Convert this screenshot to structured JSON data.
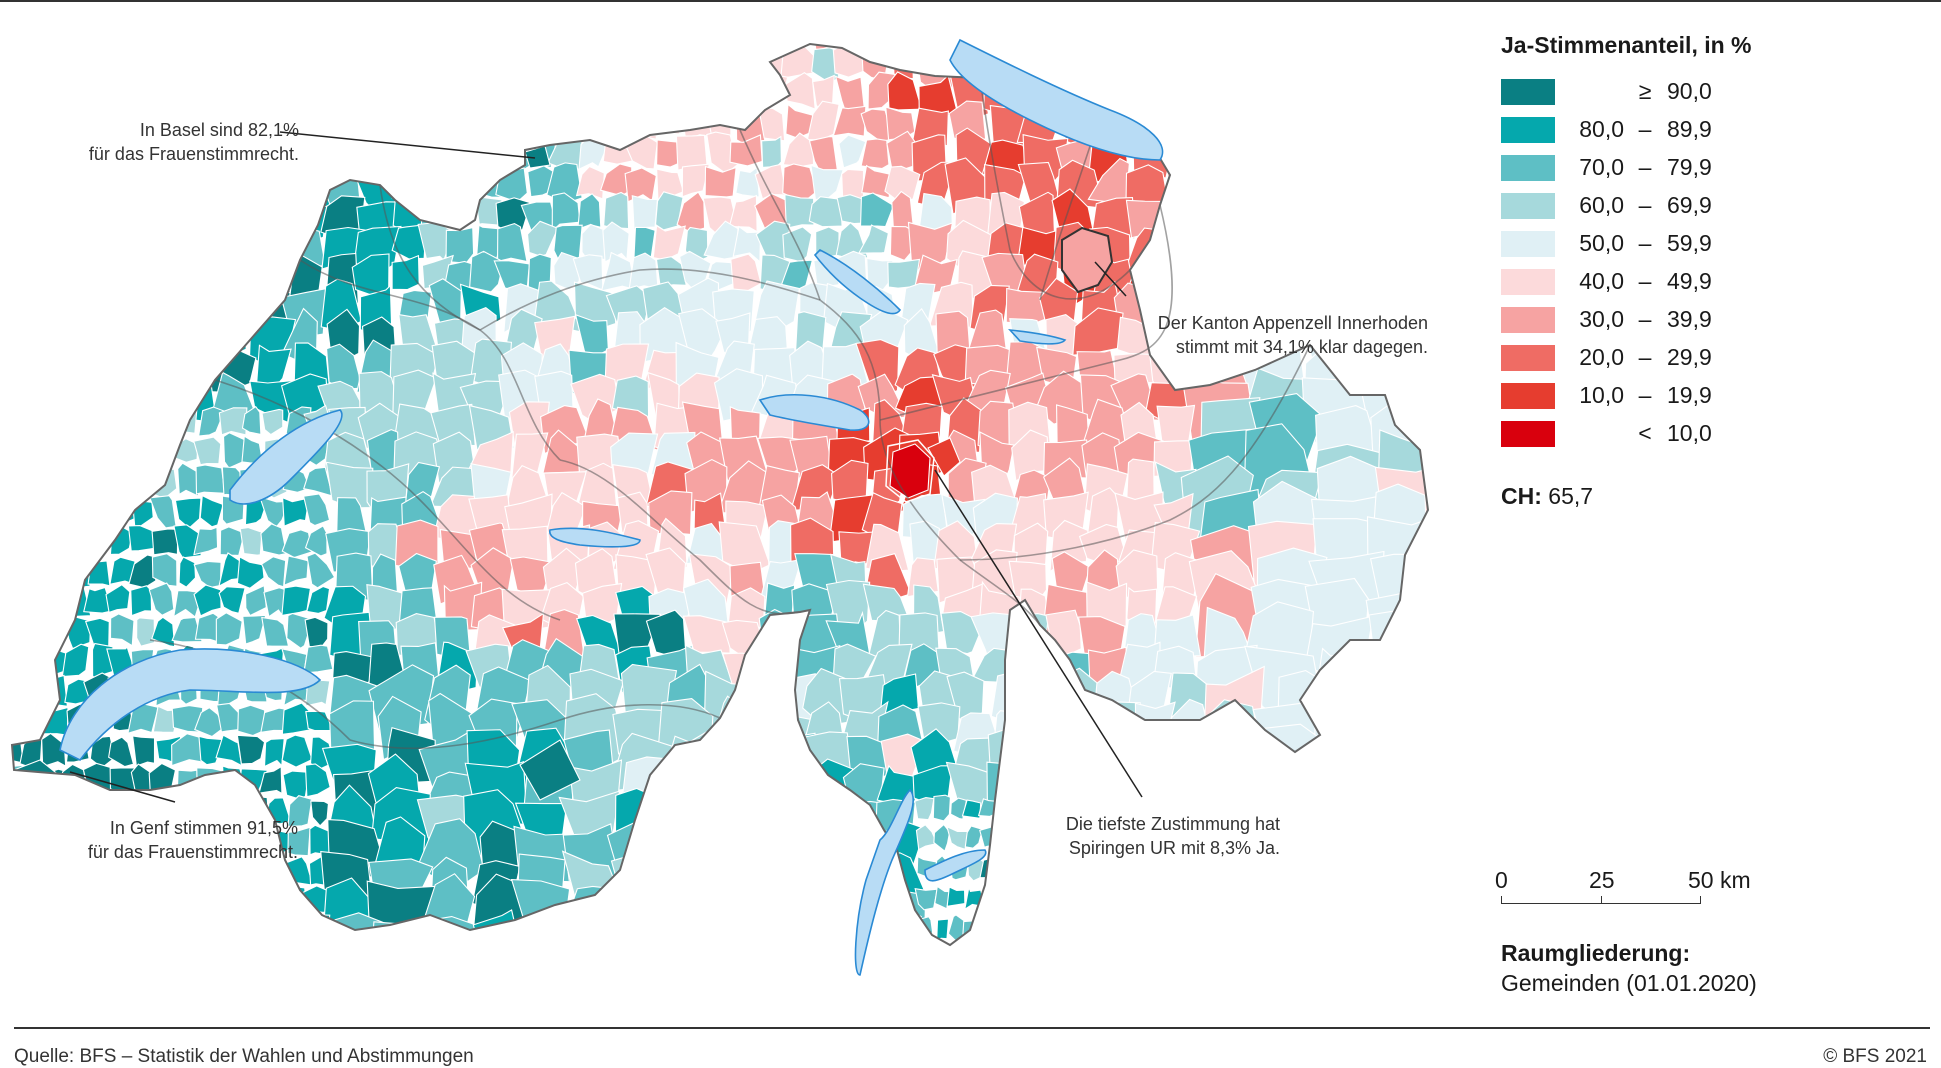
{
  "legend": {
    "title": "Ja-Stimmenanteil, in %",
    "classes": [
      {
        "lo": "",
        "sep": "≥",
        "hi": "90,0",
        "color": "#0a7f83"
      },
      {
        "lo": "80,0",
        "sep": "–",
        "hi": "89,9",
        "color": "#05a8ad"
      },
      {
        "lo": "70,0",
        "sep": "–",
        "hi": "79,9",
        "color": "#5ebfc5"
      },
      {
        "lo": "60,0",
        "sep": "–",
        "hi": "69,9",
        "color": "#a6d9dc"
      },
      {
        "lo": "50,0",
        "sep": "–",
        "hi": "59,9",
        "color": "#e0f0f5"
      },
      {
        "lo": "40,0",
        "sep": "–",
        "hi": "49,9",
        "color": "#fcdadb"
      },
      {
        "lo": "30,0",
        "sep": "–",
        "hi": "39,9",
        "color": "#f6a3a2"
      },
      {
        "lo": "20,0",
        "sep": "–",
        "hi": "29,9",
        "color": "#ef6c64"
      },
      {
        "lo": "10,0",
        "sep": "–",
        "hi": "19,9",
        "color": "#e63d2f"
      },
      {
        "lo": "",
        "sep": "<",
        "hi": "10,0",
        "color": "#d9000d"
      }
    ]
  },
  "national": {
    "label": "CH:",
    "value": "65,7"
  },
  "scalebar": {
    "labels": [
      "0",
      "25",
      "50 km"
    ]
  },
  "raumgliederung": {
    "title": "Raumgliederung:",
    "value": "Gemeinden (01.01.2020)"
  },
  "annotations": {
    "basel": [
      "In Basel sind 82,1%",
      "für das Frauenstimmrecht."
    ],
    "appenzell": [
      "Der Kanton Appenzell Innerhoden",
      "stimmt mit 34,1% klar dagegen."
    ],
    "spiringen": [
      "Die tiefste Zustimmung hat",
      "Spiringen UR mit 8,3% Ja."
    ],
    "genf": [
      "In Genf stimmen 91,5%",
      "für das Frauenstimmrecht."
    ]
  },
  "footer": {
    "source": "Quelle: BFS – Statistik der Wahlen und Abstimmungen",
    "copyright": "© BFS 2021"
  },
  "colors": {
    "lake": "#b8dcf5",
    "lake_stroke": "#2a8ad4",
    "border": "#555555"
  }
}
